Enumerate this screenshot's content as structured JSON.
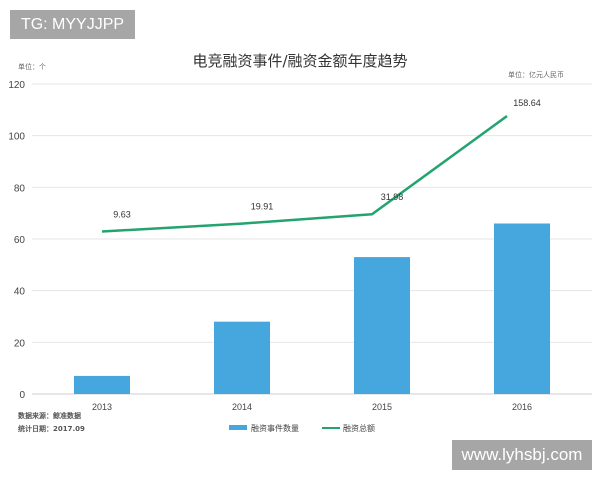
{
  "watermarks": {
    "top_left": "TG: MYYJJPP",
    "bottom_right": "www.lyhsbj.com"
  },
  "notes": {
    "source": "数据来源：鲸准数据",
    "date": "统计日期：2017.09"
  },
  "chart_data": {
    "type": "bar+line",
    "title": "电竞融资事件/融资金额年度趋势",
    "left_unit": "单位：个",
    "right_unit": "单位：亿元人民币",
    "categories": [
      "2013",
      "2014",
      "2015",
      "2016"
    ],
    "ylim": [
      0,
      120
    ],
    "yticks": [
      0,
      20,
      40,
      60,
      80,
      100,
      120
    ],
    "y2lim": [
      -200,
      200
    ],
    "grid": true,
    "legend_placement": "bottom",
    "series": [
      {
        "name": "融资事件数量",
        "type": "bar",
        "axis": "left",
        "color": "#45a7dd",
        "values": [
          7,
          28,
          53,
          66
        ]
      },
      {
        "name": "融资总额",
        "type": "line",
        "axis": "right",
        "color": "#23a36f",
        "values": [
          9.63,
          19.91,
          31.98,
          158.64
        ],
        "labels": [
          "9.63",
          "19.91",
          "31.98",
          "158.64"
        ]
      }
    ]
  }
}
